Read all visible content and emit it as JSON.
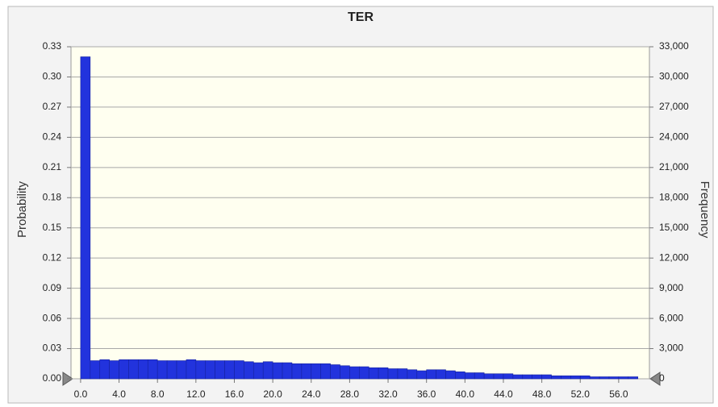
{
  "chart_data": {
    "type": "histogram",
    "title": "TER",
    "ylabel": "Probability",
    "y2label": "Frequency",
    "color": "#2233dd",
    "grid": true,
    "bins": [
      0,
      1,
      2,
      3,
      4,
      5,
      6,
      7,
      8,
      9,
      10,
      11,
      12,
      13,
      14,
      15,
      16,
      17,
      18,
      19,
      20,
      21,
      22,
      23,
      24,
      25,
      26,
      27,
      28,
      29,
      30,
      31,
      32,
      33,
      34,
      35,
      36,
      37,
      38,
      39,
      40,
      41,
      42,
      43,
      44,
      45,
      46,
      47,
      48,
      49,
      50,
      51,
      52,
      53,
      54,
      55,
      56,
      57,
      58
    ],
    "values": [
      0.32,
      0.018,
      0.019,
      0.018,
      0.019,
      0.019,
      0.019,
      0.019,
      0.018,
      0.018,
      0.018,
      0.019,
      0.018,
      0.018,
      0.018,
      0.018,
      0.018,
      0.017,
      0.016,
      0.017,
      0.016,
      0.016,
      0.015,
      0.015,
      0.015,
      0.015,
      0.014,
      0.013,
      0.012,
      0.012,
      0.011,
      0.011,
      0.01,
      0.01,
      0.009,
      0.008,
      0.009,
      0.009,
      0.008,
      0.007,
      0.006,
      0.006,
      0.005,
      0.005,
      0.005,
      0.004,
      0.004,
      0.004,
      0.004,
      0.003,
      0.003,
      0.003,
      0.003,
      0.002,
      0.002,
      0.002,
      0.002,
      0.002
    ],
    "xlim": [
      -1,
      59.2
    ],
    "xticks": [
      {
        "value": 0,
        "label": "0.0"
      },
      {
        "value": 4,
        "label": "4.0"
      },
      {
        "value": 8,
        "label": "8.0"
      },
      {
        "value": 12,
        "label": "12.0"
      },
      {
        "value": 16,
        "label": "16.0"
      },
      {
        "value": 20,
        "label": "20.0"
      },
      {
        "value": 24,
        "label": "24.0"
      },
      {
        "value": 28,
        "label": "28.0"
      },
      {
        "value": 32,
        "label": "32.0"
      },
      {
        "value": 36,
        "label": "36.0"
      },
      {
        "value": 40,
        "label": "40.0"
      },
      {
        "value": 44,
        "label": "44.0"
      },
      {
        "value": 48,
        "label": "48.0"
      },
      {
        "value": 52,
        "label": "52.0"
      },
      {
        "value": 56,
        "label": "56.0"
      }
    ],
    "ylim": [
      0,
      0.33
    ],
    "yticks": [
      {
        "value": 0,
        "label": "0.00"
      },
      0.03,
      0.06,
      0.09,
      0.12,
      0.15,
      0.18,
      0.21,
      0.24,
      0.27,
      {
        "value": 0.3,
        "label": "0.30"
      },
      0.33
    ],
    "y2lim": [
      0,
      33000
    ],
    "y2ticks": [
      0,
      {
        "value": 3000,
        "label": "3,000"
      },
      {
        "value": 6000,
        "label": "6,000"
      },
      {
        "value": 9000,
        "label": "9,000"
      },
      {
        "value": 12000,
        "label": "12,000"
      },
      {
        "value": 15000,
        "label": "15,000"
      },
      {
        "value": 18000,
        "label": "18,000"
      },
      {
        "value": 21000,
        "label": "21,000"
      },
      {
        "value": 24000,
        "label": "24,000"
      },
      {
        "value": 27000,
        "label": "27,000"
      },
      {
        "value": 30000,
        "label": "30,000"
      },
      {
        "value": 33000,
        "label": "33,000"
      }
    ]
  }
}
